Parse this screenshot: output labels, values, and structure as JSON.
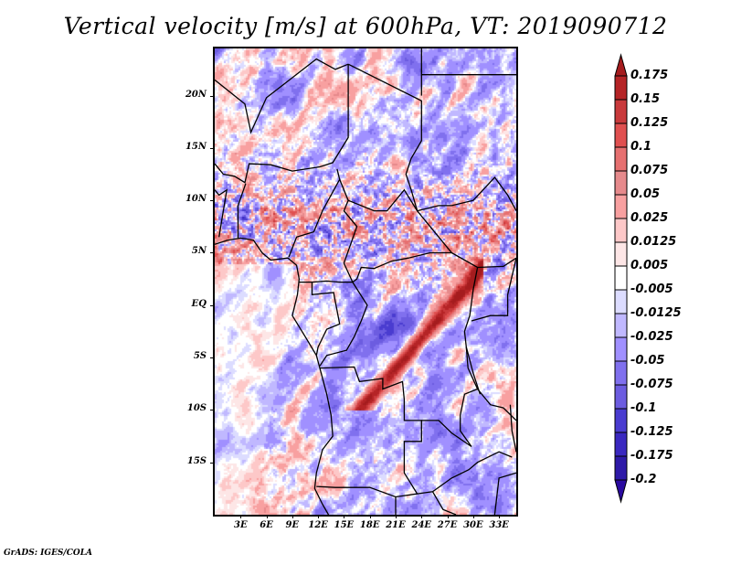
{
  "title": "Vertical velocity [m/s] at 600hPa, VT: 2019090712",
  "credit": "GrADS: IGES/COLA",
  "map": {
    "variable": "Vertical velocity",
    "units": "m/s",
    "level": "600hPa",
    "valid_time": "2019090712",
    "lat_range": [
      -20,
      24.5
    ],
    "lon_range": [
      0,
      35
    ],
    "lat_ticks": [
      "20N",
      "15N",
      "10N",
      "5N",
      "EQ",
      "5S",
      "10S",
      "15S"
    ],
    "lat_tick_values": [
      20,
      15,
      10,
      5,
      0,
      -5,
      -10,
      -15
    ],
    "lon_ticks": [
      "3E",
      "6E",
      "9E",
      "12E",
      "15E",
      "18E",
      "21E",
      "24E",
      "27E",
      "30E",
      "33E"
    ],
    "lon_tick_values": [
      3,
      6,
      9,
      12,
      15,
      18,
      21,
      24,
      27,
      30,
      33
    ],
    "border_color": "#000000"
  },
  "colorbar": {
    "labels": [
      "0.175",
      "0.15",
      "0.125",
      "0.1",
      "0.075",
      "0.05",
      "0.025",
      "0.0125",
      "0.005",
      "-0.005",
      "-0.0125",
      "-0.025",
      "-0.05",
      "-0.075",
      "-0.1",
      "-0.125",
      "-0.175",
      "-0.2"
    ],
    "levels": [
      0.175,
      0.15,
      0.125,
      0.1,
      0.075,
      0.05,
      0.025,
      0.0125,
      0.005,
      -0.005,
      -0.0125,
      -0.025,
      -0.05,
      -0.075,
      -0.1,
      -0.125,
      -0.175,
      -0.2
    ],
    "colors_top_to_bottom": [
      "#a51c1e",
      "#b52426",
      "#c93a3c",
      "#e05050",
      "#e67070",
      "#e68a8c",
      "#f8a0a0",
      "#fdc8c8",
      "#fde6e6",
      "#ffffff",
      "#dcdcff",
      "#c0b8ff",
      "#a090ff",
      "#8070ee",
      "#6c5ce0",
      "#4a3cd0",
      "#3a28c0",
      "#2e1aa8",
      "#2a0aa0"
    ],
    "extend": "both"
  }
}
